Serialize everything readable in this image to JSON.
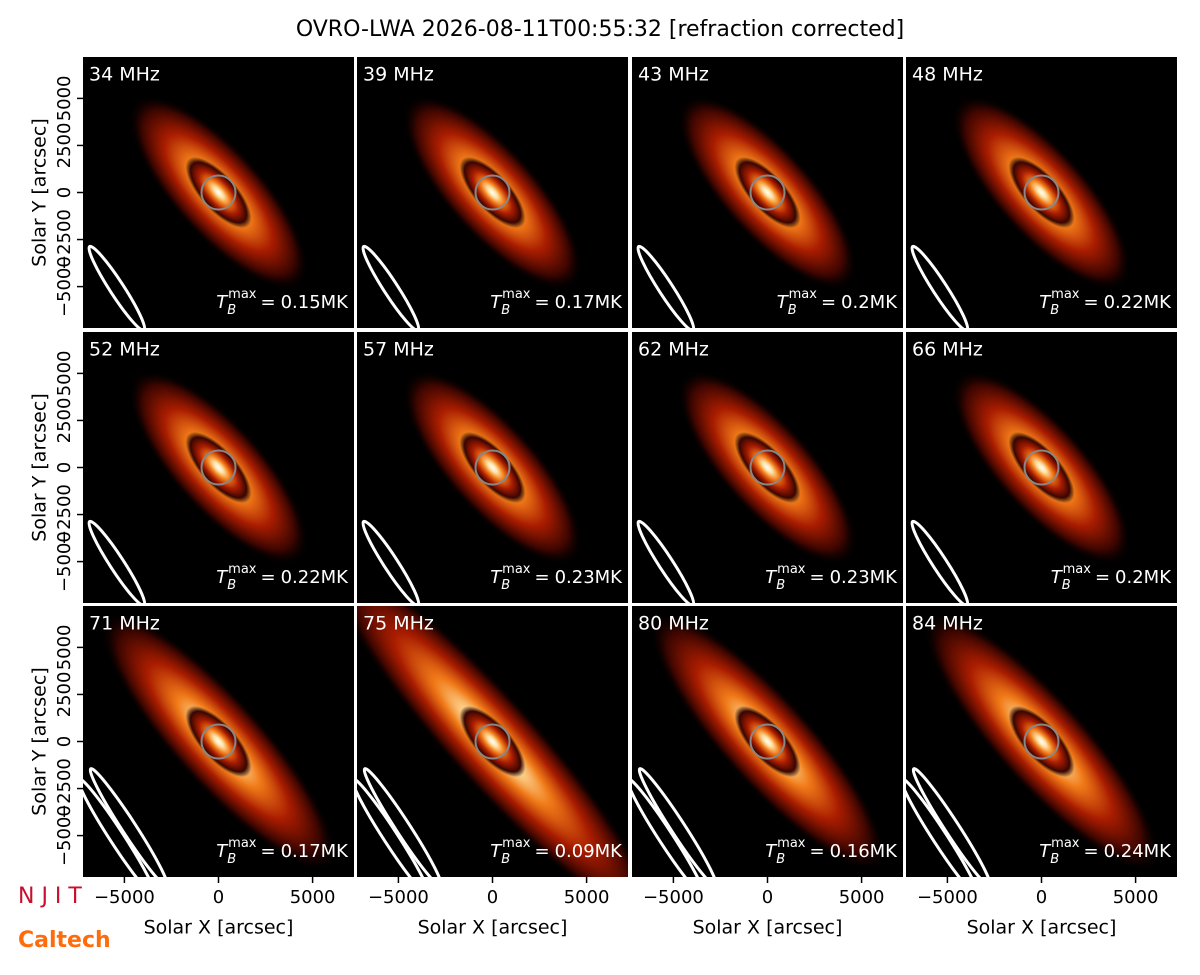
{
  "title": "OVRO-LWA 2026-08-11T00:55:32 [refraction corrected]",
  "x_label": "Solar X [arcsec]",
  "y_label": "Solar Y [arcsec]",
  "xlim": [
    -7200,
    7200
  ],
  "ylim": [
    -7200,
    7200
  ],
  "xticks": [
    {
      "value": -5000,
      "label": "−5000"
    },
    0,
    5000
  ],
  "yticks": [
    {
      "value": -5000,
      "label": "−5000"
    },
    {
      "value": -2500,
      "label": "−2500"
    },
    0,
    2500,
    5000
  ],
  "tmax_symbol": "T",
  "tmax_sub": "B",
  "tmax_sup": "max",
  "tmax_eq": "=",
  "panels": [
    {
      "freq": "34 MHz",
      "tmax": "0.15MK"
    },
    {
      "freq": "39 MHz",
      "tmax": "0.17MK"
    },
    {
      "freq": "43 MHz",
      "tmax": "0.2MK"
    },
    {
      "freq": "48 MHz",
      "tmax": "0.22MK"
    },
    {
      "freq": "52 MHz",
      "tmax": "0.22MK"
    },
    {
      "freq": "57 MHz",
      "tmax": "0.23MK"
    },
    {
      "freq": "62 MHz",
      "tmax": "0.23MK"
    },
    {
      "freq": "66 MHz",
      "tmax": "0.2MK"
    },
    {
      "freq": "71 MHz",
      "tmax": "0.17MK"
    },
    {
      "freq": "75 MHz",
      "tmax": "0.09MK"
    },
    {
      "freq": "80 MHz",
      "tmax": "0.16MK"
    },
    {
      "freq": "84 MHz",
      "tmax": "0.24MK"
    }
  ],
  "logos": [
    "N J I T",
    "Caltech"
  ]
}
